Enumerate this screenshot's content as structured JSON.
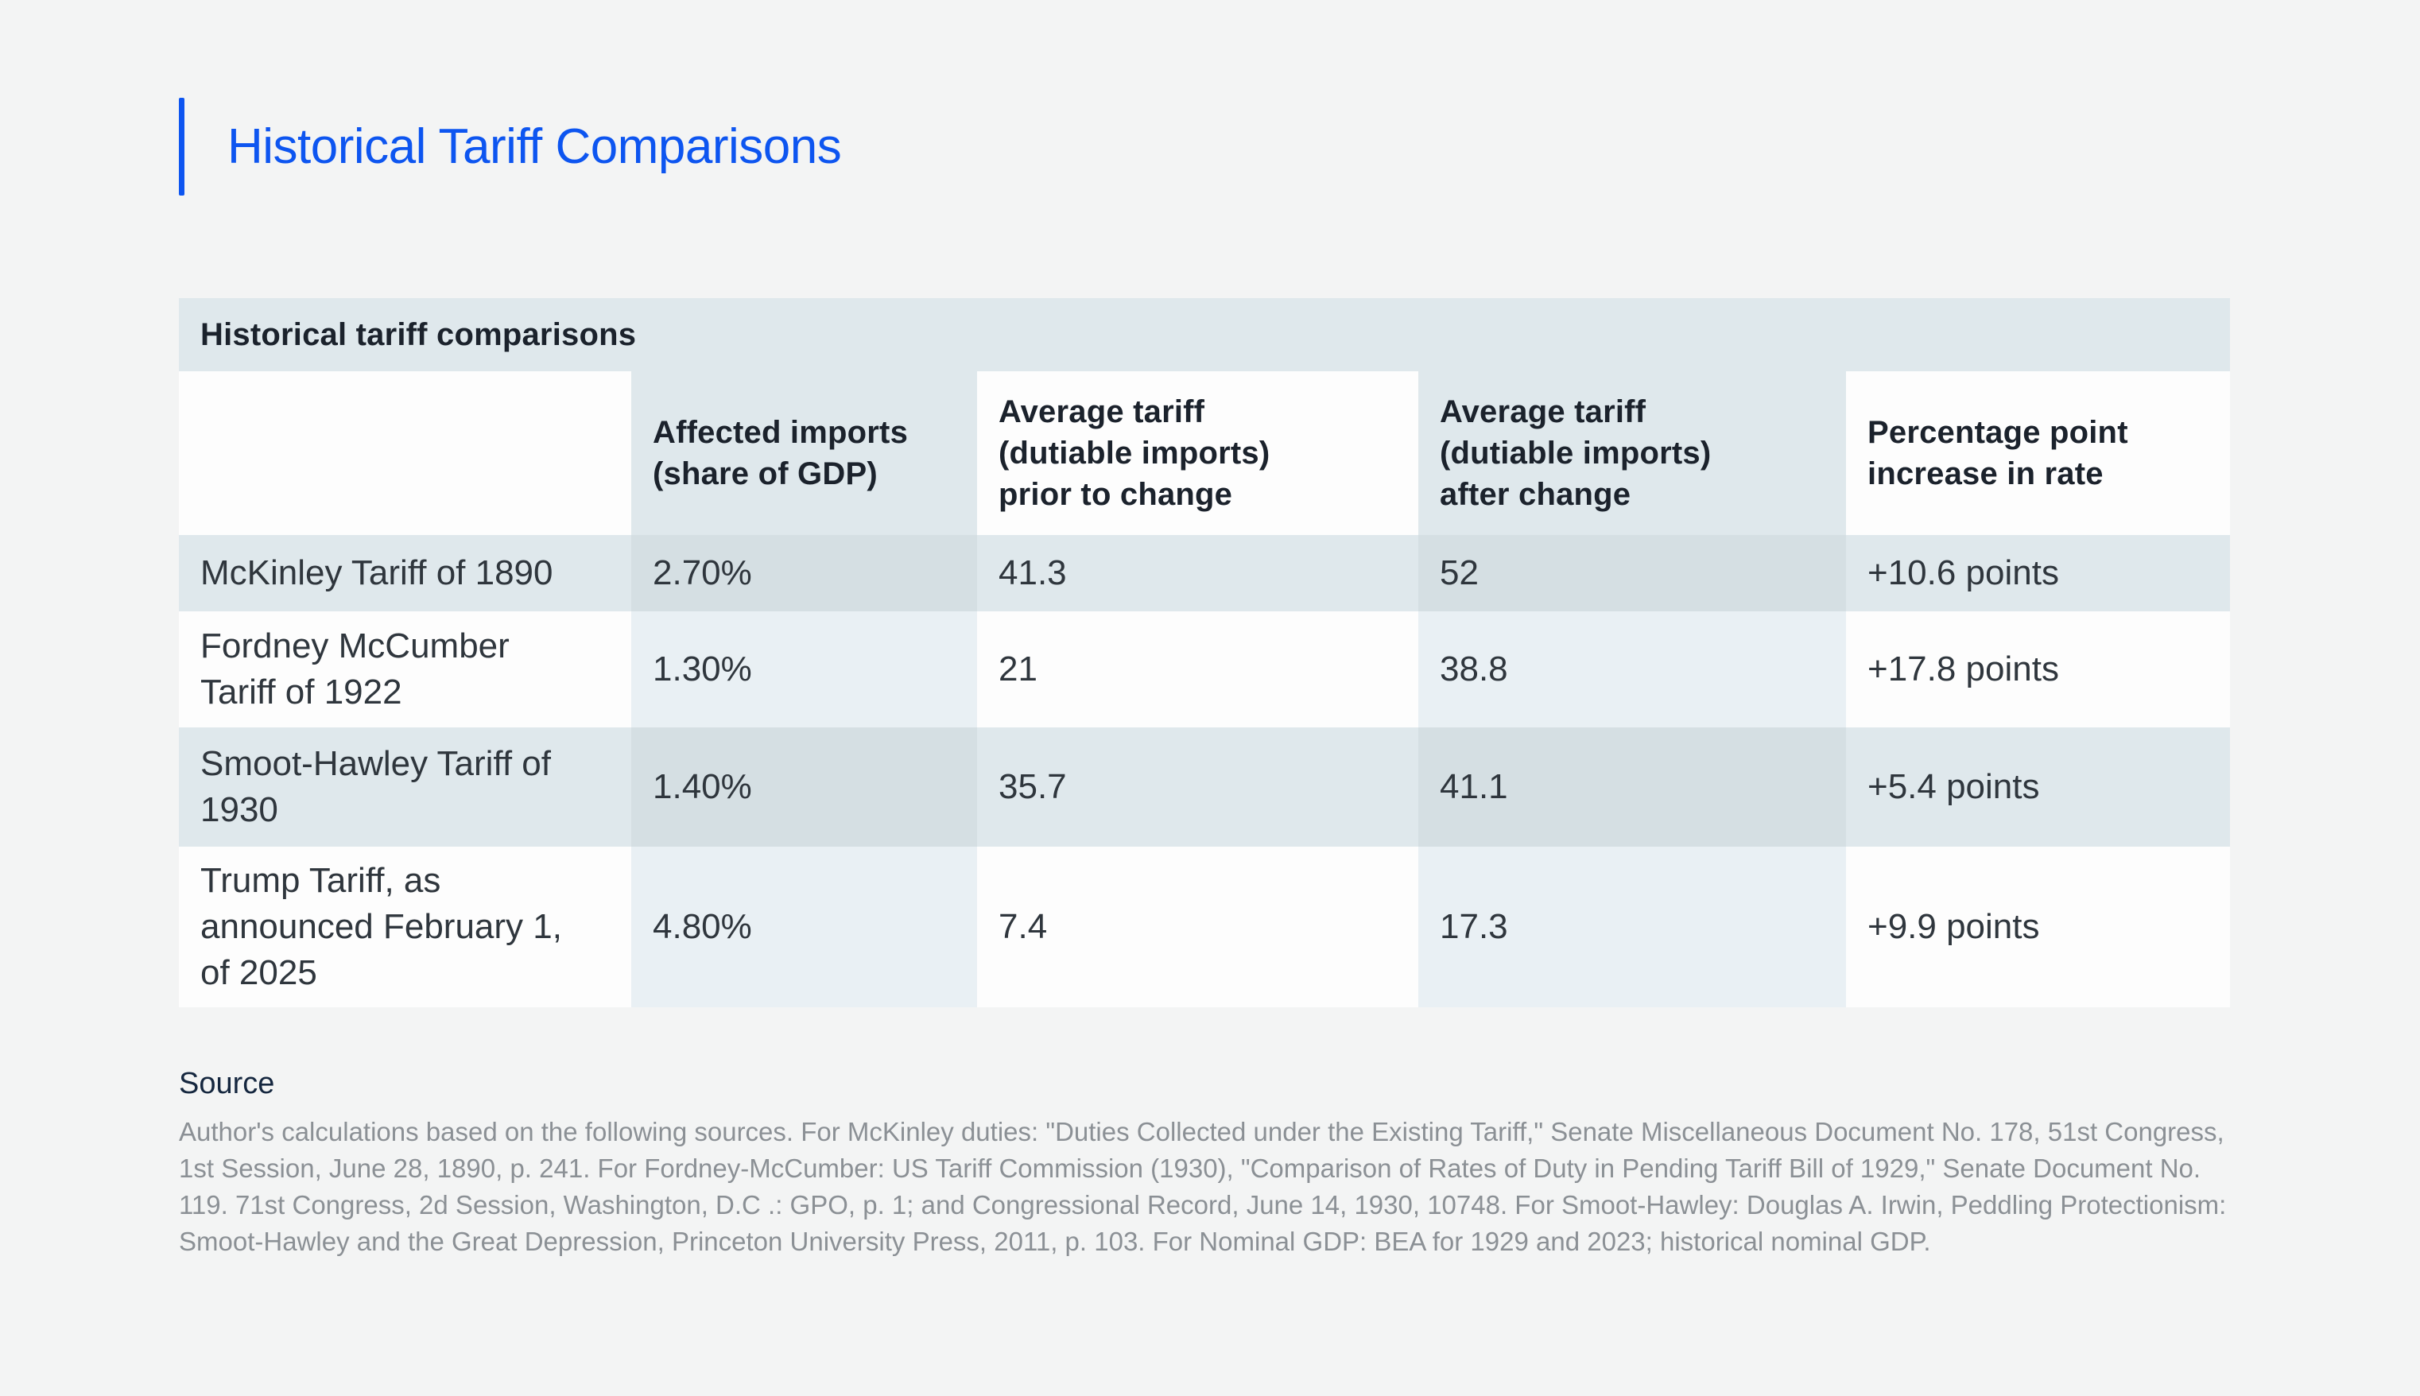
{
  "page": {
    "title": "Historical Tariff Comparisons"
  },
  "chart_data": {
    "type": "table",
    "title": "Historical tariff comparisons",
    "columns": [
      "",
      "Affected imports\n(share of GDP)",
      "Average tariff\n(dutiable imports)\nprior to change",
      "Average tariff\n(dutiable imports)\nafter change",
      "Percentage point\nincrease in rate"
    ],
    "rows": [
      [
        "McKinley Tariff of 1890",
        "2.70%",
        "41.3",
        "52",
        "+10.6 points"
      ],
      [
        "Fordney McCumber\nTariff of 1922",
        "1.30%",
        "21",
        "38.8",
        "+17.8 points"
      ],
      [
        "Smoot-Hawley Tariff of\n1930",
        "1.40%",
        "35.7",
        "41.1",
        "+5.4 points"
      ],
      [
        "Trump Tariff, as\nannounced February 1,\nof 2025",
        "4.80%",
        "7.4",
        "17.3",
        "+9.9 points"
      ]
    ]
  },
  "source": {
    "label": "Source",
    "text": "Author's calculations based on the following sources. For McKinley duties: \"Duties Collected under the Existing Tariff,\" Senate Miscellaneous Document No. 178, 51st Congress, 1st Session, June 28, 1890, p. 241. For Fordney-McCumber: US Tariff Commission (1930), \"Comparison of Rates of Duty in Pending Tariff Bill of 1929,\" Senate Document No. 119. 71st Congress, 2d Session, Washington, D.C .: GPO, p. 1; and Congressional Record, June 14, 1930, 10748. For Smoot-Hawley: Douglas A. Irwin, Peddling Protectionism: Smoot-Hawley and the Great Depression, Princeton University Press, 2011, p. 103. For Nominal GDP: BEA for 1929 and 2023; historical nominal GDP."
  },
  "colors": {
    "accent_blue": "#0d55f0",
    "page_background": "#f3f4f4",
    "table_band": "#dfe8ec",
    "tint_dark": "#d5dfe3",
    "tint_light": "#e9f0f4",
    "cell_white": "#fdfdfd",
    "heading_text": "#1b222c",
    "cell_text": "#2f363d",
    "source_label_text": "#15273f",
    "source_body_text": "#8b9095"
  }
}
